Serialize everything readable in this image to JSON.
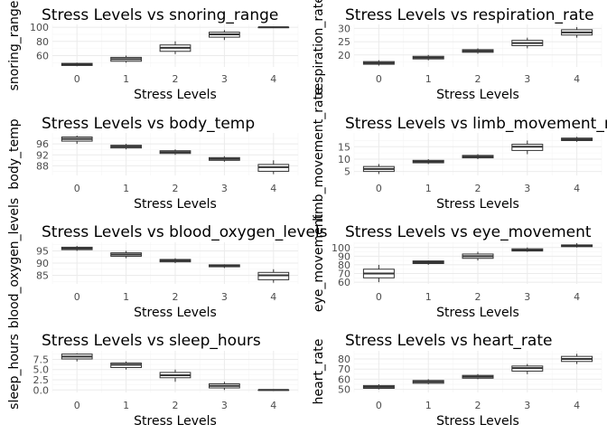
{
  "chart_data": [
    {
      "type": "boxplot",
      "title": "Stress Levels vs snoring_range",
      "xlabel": "Stress Levels",
      "ylabel": "snoring_range",
      "categories": [
        "0",
        "1",
        "2",
        "3",
        "4"
      ],
      "yticks": [
        60,
        80,
        100
      ],
      "ylim": [
        44,
        104
      ],
      "boxes": [
        {
          "min": 45,
          "q1": 46,
          "median": 47.5,
          "q3": 49,
          "max": 50
        },
        {
          "min": 50,
          "q1": 52,
          "median": 55,
          "q3": 57.5,
          "max": 60
        },
        {
          "min": 62,
          "q1": 66,
          "median": 71,
          "q3": 75,
          "max": 80
        },
        {
          "min": 82,
          "q1": 86,
          "median": 90,
          "q3": 93,
          "max": 96
        },
        {
          "min": 100,
          "q1": 100,
          "median": 100,
          "q3": 100,
          "max": 100
        }
      ]
    },
    {
      "type": "boxplot",
      "title": "Stress Levels vs respiration_rate",
      "xlabel": "Stress Levels",
      "ylabel": "respiration_rate",
      "categories": [
        "0",
        "1",
        "2",
        "3",
        "4"
      ],
      "yticks": [
        20,
        25,
        30
      ],
      "ylim": [
        15.5,
        31.5
      ],
      "boxes": [
        {
          "min": 16,
          "q1": 16.5,
          "median": 17,
          "q3": 17.5,
          "max": 18
        },
        {
          "min": 18,
          "q1": 18.5,
          "median": 19,
          "q3": 19.5,
          "max": 20
        },
        {
          "min": 20.5,
          "q1": 21,
          "median": 21.5,
          "q3": 22,
          "max": 22.5
        },
        {
          "min": 22.5,
          "q1": 23.5,
          "median": 24.5,
          "q3": 25.5,
          "max": 26.5
        },
        {
          "min": 26.5,
          "q1": 27.5,
          "median": 28.5,
          "q3": 29.5,
          "max": 30.5
        }
      ]
    },
    {
      "type": "boxplot",
      "title": "Stress Levels vs body_temp",
      "xlabel": "Stress Levels",
      "ylabel": "body_temp",
      "categories": [
        "0",
        "1",
        "2",
        "3",
        "4"
      ],
      "yticks": [
        88,
        92,
        96
      ],
      "ylim": [
        84.5,
        100
      ],
      "boxes": [
        {
          "min": 96,
          "q1": 97,
          "median": 97.8,
          "q3": 98.5,
          "max": 99
        },
        {
          "min": 94,
          "q1": 94.5,
          "median": 95,
          "q3": 95.5,
          "max": 96
        },
        {
          "min": 92,
          "q1": 92.5,
          "median": 93,
          "q3": 93.5,
          "max": 94
        },
        {
          "min": 89.5,
          "q1": 90,
          "median": 90.5,
          "q3": 91,
          "max": 91.5
        },
        {
          "min": 85,
          "q1": 86,
          "median": 87.5,
          "q3": 88.5,
          "max": 90
        }
      ]
    },
    {
      "type": "boxplot",
      "title": "Stress Levels vs limb_movement_rate",
      "xlabel": "Stress Levels",
      "ylabel": "limb_movement_rate",
      "categories": [
        "0",
        "1",
        "2",
        "3",
        "4"
      ],
      "yticks": [
        5,
        10,
        15
      ],
      "ylim": [
        3.4,
        20.6
      ],
      "boxes": [
        {
          "min": 4,
          "q1": 5,
          "median": 6,
          "q3": 7,
          "max": 8
        },
        {
          "min": 8,
          "q1": 8.5,
          "median": 9,
          "q3": 9.5,
          "max": 10
        },
        {
          "min": 10,
          "q1": 10.5,
          "median": 11,
          "q3": 11.5,
          "max": 12
        },
        {
          "min": 12,
          "q1": 13.5,
          "median": 15,
          "q3": 16,
          "max": 17.5
        },
        {
          "min": 17,
          "q1": 17.5,
          "median": 18,
          "q3": 18.5,
          "max": 19
        }
      ]
    },
    {
      "type": "boxplot",
      "title": "Stress Levels vs blood_oxygen_levels",
      "xlabel": "Stress Levels",
      "ylabel": "blood_oxygen_levels",
      "categories": [
        "0",
        "1",
        "2",
        "3",
        "4"
      ],
      "yticks": [
        85,
        90,
        95
      ],
      "ylim": [
        81.5,
        98.5
      ],
      "boxes": [
        {
          "min": 95,
          "q1": 95.5,
          "median": 96,
          "q3": 96.5,
          "max": 97
        },
        {
          "min": 92,
          "q1": 92.8,
          "median": 93.5,
          "q3": 94.2,
          "max": 95
        },
        {
          "min": 90,
          "q1": 90.5,
          "median": 91,
          "q3": 91.5,
          "max": 92
        },
        {
          "min": 88,
          "q1": 88.5,
          "median": 89,
          "q3": 89.3,
          "max": 89.5
        },
        {
          "min": 82,
          "q1": 83.2,
          "median": 85,
          "q3": 86.2,
          "max": 87.5
        }
      ]
    },
    {
      "type": "boxplot",
      "title": "Stress Levels vs eye_movement",
      "xlabel": "Stress Levels",
      "ylabel": "eye_movement",
      "categories": [
        "0",
        "1",
        "2",
        "3",
        "4"
      ],
      "yticks": [
        60,
        70,
        80,
        90,
        100
      ],
      "ylim": [
        58,
        106
      ],
      "boxes": [
        {
          "min": 60,
          "q1": 65,
          "median": 70,
          "q3": 75,
          "max": 80
        },
        {
          "min": 80,
          "q1": 81.5,
          "median": 83,
          "q3": 84.5,
          "max": 85
        },
        {
          "min": 85,
          "q1": 87.5,
          "median": 90,
          "q3": 92.5,
          "max": 95
        },
        {
          "min": 95,
          "q1": 96,
          "median": 97,
          "q3": 98.5,
          "max": 100
        },
        {
          "min": 100,
          "q1": 101,
          "median": 102,
          "q3": 103,
          "max": 105
        }
      ]
    },
    {
      "type": "boxplot",
      "title": "Stress Levels vs sleep_hours",
      "xlabel": "Stress Levels",
      "ylabel": "sleep_hours",
      "categories": [
        "0",
        "1",
        "2",
        "3",
        "4"
      ],
      "yticks": [
        0.0,
        2.5,
        5.0,
        7.5
      ],
      "ytick_labels": [
        "0.0",
        "2.5",
        "5.0",
        "7.5"
      ],
      "ylim": [
        -0.6,
        9.6
      ],
      "boxes": [
        {
          "min": 7,
          "q1": 7.6,
          "median": 8.2,
          "q3": 8.8,
          "max": 9
        },
        {
          "min": 5,
          "q1": 5.5,
          "median": 6.2,
          "q3": 6.6,
          "max": 7
        },
        {
          "min": 2,
          "q1": 3,
          "median": 3.6,
          "q3": 4.3,
          "max": 5
        },
        {
          "min": 0,
          "q1": 0.5,
          "median": 1,
          "q3": 1.5,
          "max": 2
        },
        {
          "min": 0,
          "q1": 0,
          "median": 0,
          "q3": 0,
          "max": 0
        }
      ]
    },
    {
      "type": "boxplot",
      "title": "Stress Levels vs heart_rate",
      "xlabel": "Stress Levels",
      "ylabel": "heart_rate",
      "categories": [
        "0",
        "1",
        "2",
        "3",
        "4"
      ],
      "yticks": [
        50,
        60,
        70,
        80
      ],
      "ylim": [
        47,
        88
      ],
      "boxes": [
        {
          "min": 50,
          "q1": 51,
          "median": 52.5,
          "q3": 53.8,
          "max": 55
        },
        {
          "min": 55,
          "q1": 56,
          "median": 57.5,
          "q3": 58.8,
          "max": 60
        },
        {
          "min": 60,
          "q1": 61,
          "median": 62.5,
          "q3": 63.8,
          "max": 65
        },
        {
          "min": 65,
          "q1": 68,
          "median": 71,
          "q3": 73,
          "max": 75
        },
        {
          "min": 75,
          "q1": 77.5,
          "median": 80,
          "q3": 82.5,
          "max": 85
        }
      ]
    }
  ]
}
